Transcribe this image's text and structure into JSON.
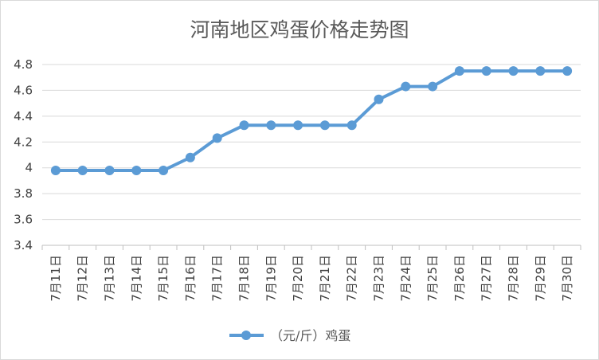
{
  "chart_data": {
    "type": "line",
    "title": "河南地区鸡蛋价格走势图",
    "xlabel": "",
    "ylabel": "",
    "categories": [
      "7月11日",
      "7月12日",
      "7月13日",
      "7月14日",
      "7月15日",
      "7月16日",
      "7月17日",
      "7月18日",
      "7月19日",
      "7月20日",
      "7月21日",
      "7月22日",
      "7月23日",
      "7月24日",
      "7月25日",
      "7月26日",
      "7月27日",
      "7月28日",
      "7月29日",
      "7月30日"
    ],
    "series": [
      {
        "name": "（元/斤）鸡蛋",
        "color": "#5b9bd5",
        "values": [
          3.98,
          3.98,
          3.98,
          3.98,
          3.98,
          4.08,
          4.23,
          4.33,
          4.33,
          4.33,
          4.33,
          4.33,
          4.53,
          4.63,
          4.63,
          4.75,
          4.75,
          4.75,
          4.75,
          4.75
        ]
      }
    ],
    "ylim": [
      3.4,
      4.8
    ],
    "yticks": [
      "3.4",
      "3.6",
      "3.8",
      "4",
      "4.2",
      "4.4",
      "4.6",
      "4.8"
    ],
    "grid": true,
    "legend_position": "bottom"
  }
}
